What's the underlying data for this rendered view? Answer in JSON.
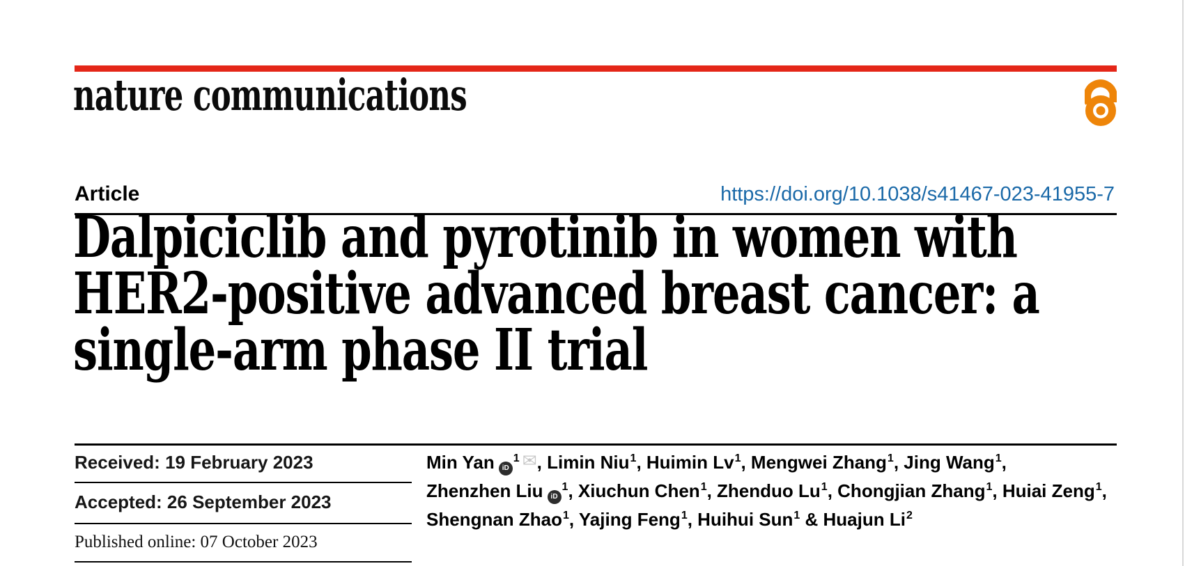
{
  "colors": {
    "masthead_red": "#e42618",
    "open_access_orange": "#ee8509",
    "doi_blue": "#1a69a8",
    "orcid_dark": "#2d2d2d",
    "mail_gray": "#c6c6c6",
    "page_edge_gray": "#d8d8d8"
  },
  "masthead": {
    "wordmark": "nature communications",
    "open_access_icon": "open-access-lock"
  },
  "article_row": {
    "label": "Article",
    "doi": "https://doi.org/10.1038/s41467-023-41955-7"
  },
  "title": {
    "lines": [
      "Dalpiciclib and pyrotinib in women with",
      "HER2-positive advanced breast cancer: a",
      "single-arm phase II trial"
    ]
  },
  "dates": {
    "received": "Received: 19 February 2023",
    "accepted": "Accepted: 26 September 2023",
    "published": "Published online: 07 October 2023"
  },
  "authors": {
    "lines": [
      {
        "entries": [
          {
            "name": "Min Yan",
            "orcid": true,
            "sup": "1",
            "mail": true
          },
          {
            "name": "Limin Niu",
            "sup": "1"
          },
          {
            "name": "Huimin Lv",
            "sup": "1"
          },
          {
            "name": "Mengwei Zhang",
            "sup": "1"
          },
          {
            "name": "Jing Wang",
            "sup": "1"
          }
        ],
        "trailing": ","
      },
      {
        "entries": [
          {
            "name": "Zhenzhen Liu",
            "orcid": true,
            "sup": "1"
          },
          {
            "name": "Xiuchun Chen",
            "sup": "1"
          },
          {
            "name": "Zhenduo Lu",
            "sup": "1"
          },
          {
            "name": "Chongjian Zhang",
            "sup": "1"
          },
          {
            "name": "Huiai Zeng",
            "sup": "1"
          }
        ],
        "trailing": ","
      },
      {
        "entries": [
          {
            "name": "Shengnan Zhao",
            "sup": "1"
          },
          {
            "name": "Yajing Feng",
            "sup": "1"
          },
          {
            "name": "Huihui Sun",
            "sup": "1"
          },
          {
            "name": "Huajun Li",
            "sup": "2"
          }
        ],
        "amp_last": true
      }
    ]
  }
}
